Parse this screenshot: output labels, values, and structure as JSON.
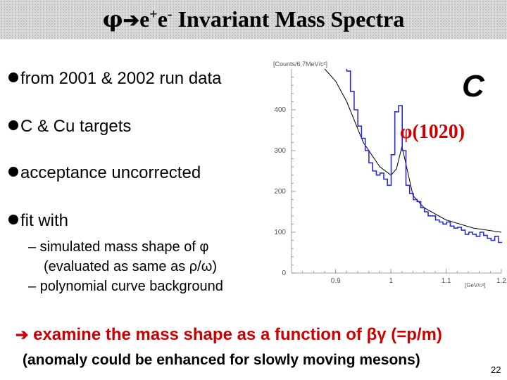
{
  "title": {
    "phi": "φ",
    "arrow": "➔",
    "e1": "e",
    "plus": "+",
    "e2": "e",
    "minus": "-",
    "rest": " Invariant Mass Spectra"
  },
  "bullets": [
    "from 2001 & 2002 run data",
    "C & Cu targets",
    "acceptance uncorrected",
    "fit with"
  ],
  "sub_bullets": [
    "– simulated mass shape of φ",
    "(evaluated as same as ρ/ω)",
    "– polynomial curve background"
  ],
  "chart_data": {
    "type": "line",
    "title": "C",
    "ylabel": "[Counts/6.7MeV/c²]",
    "xlabel": "[GeV/c²]",
    "x_ticks": [
      "0.9",
      "1",
      "1.1",
      "1.2"
    ],
    "y_ticks": [
      "0",
      "100",
      "200",
      "300",
      "400"
    ],
    "xlim": [
      0.82,
      1.2
    ],
    "ylim": [
      0,
      500
    ],
    "annotation": "φ(1020)",
    "fit_curve": {
      "x": [
        0.88,
        0.9,
        0.92,
        0.95,
        0.98,
        1.0,
        1.01,
        1.02,
        1.03,
        1.04,
        1.06,
        1.1,
        1.15,
        1.2
      ],
      "y": [
        500,
        470,
        420,
        320,
        260,
        240,
        255,
        310,
        250,
        190,
        160,
        130,
        110,
        100
      ]
    },
    "data_histogram": {
      "bin_width": 0.0067,
      "x_start": 0.92,
      "y": [
        495,
        445,
        400,
        360,
        330,
        300,
        270,
        250,
        240,
        245,
        230,
        215,
        290,
        395,
        410,
        300,
        215,
        195,
        180,
        175,
        160,
        150,
        140,
        140,
        130,
        125,
        120,
        125,
        115,
        110,
        112,
        105,
        95,
        100,
        95,
        90,
        100,
        92,
        85,
        80,
        90,
        75
      ]
    }
  },
  "footer": {
    "examine_arrow": "➔",
    "examine_text": " examine the mass shape as a function of βγ (=p/m)",
    "anomaly_text": "(anomaly could be enhanced for slowly moving mesons)",
    "page_number": "22"
  },
  "colors": {
    "accent_red": "#cc0000",
    "fit_curve": "#000000",
    "histogram": "#2b2bd6"
  }
}
